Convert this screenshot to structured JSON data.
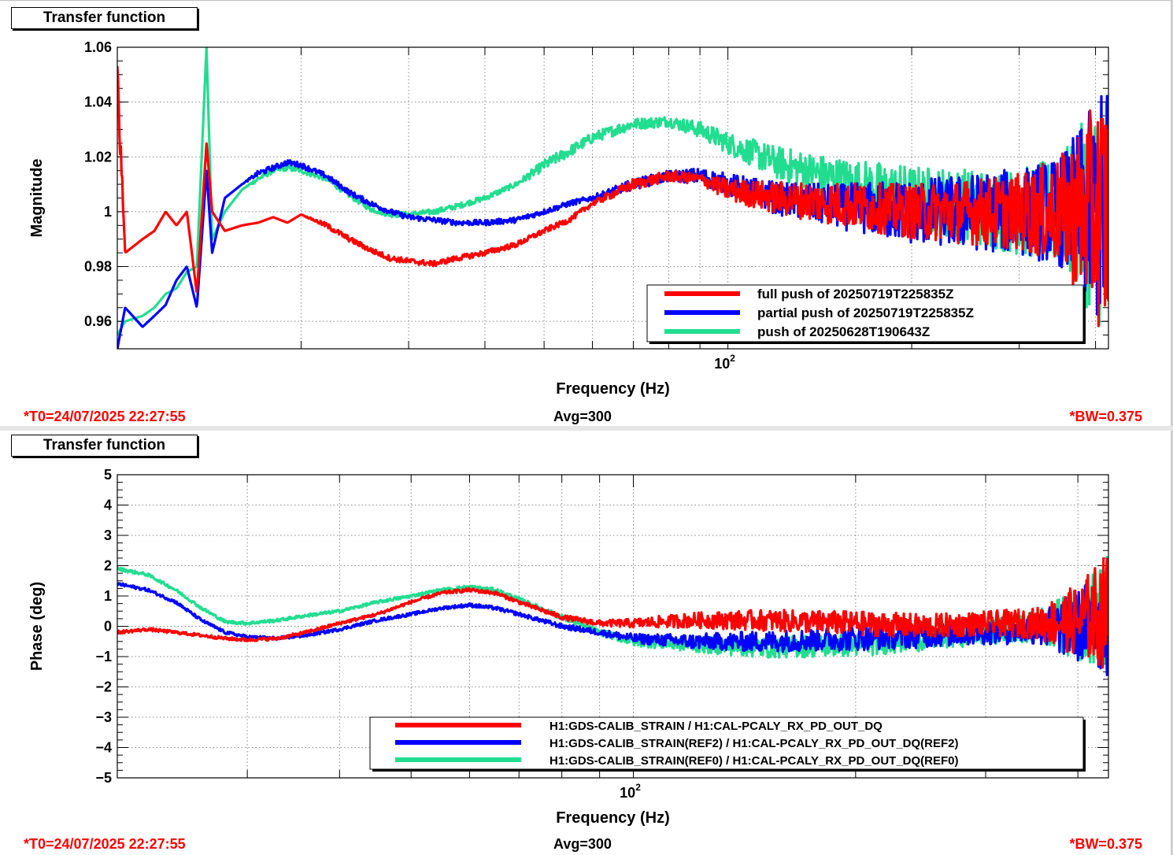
{
  "colors": {
    "full": "#ff0000",
    "partial": "#0000ff",
    "push": "#22dd90",
    "frame": "#000000",
    "grid": "#888888"
  },
  "panels": [
    {
      "pad_title": "Transfer function",
      "footer_left": "*T0=24/07/2025 22:27:55",
      "footer_center": "Avg=300",
      "footer_right": "*BW=0.375"
    },
    {
      "pad_title": "Transfer function",
      "footer_left": "*T0=24/07/2025 22:27:55",
      "footer_center": "Avg=300",
      "footer_right": "*BW=0.375"
    }
  ],
  "chart_data": [
    {
      "type": "line",
      "xlabel": "Frequency (Hz)",
      "ylabel": "Magnitude",
      "xscale": "log",
      "xlim": [
        10,
        420
      ],
      "ylim": [
        0.95,
        1.06
      ],
      "yticks": [
        "1.06",
        "1.04",
        "1.02",
        "1",
        "0.98",
        "0.96"
      ],
      "ytick_values": [
        1.06,
        1.04,
        1.02,
        1.0,
        0.98,
        0.96
      ],
      "xtick_label": {
        "base": "10",
        "exp": "2",
        "value": 100
      },
      "grid": true,
      "legend_position": "bottom-right",
      "series": [
        {
          "name": "full push of 20250719T225835Z",
          "color": "#ff0000",
          "x": [
            10,
            10.3,
            11,
            11.5,
            12,
            12.5,
            13,
            13.5,
            14,
            14.3,
            15,
            16,
            17,
            18,
            19,
            20,
            22,
            24,
            26,
            28,
            30,
            33,
            36,
            40,
            45,
            50,
            55,
            60,
            70,
            80,
            90,
            100,
            120,
            150,
            200,
            250,
            300,
            350,
            400,
            420
          ],
          "y": [
            1.05,
            0.985,
            0.99,
            0.993,
            1.0,
            0.995,
            1.0,
            0.97,
            1.025,
            1.0,
            0.993,
            0.995,
            0.996,
            0.998,
            0.996,
            0.999,
            0.995,
            0.99,
            0.986,
            0.983,
            0.982,
            0.981,
            0.983,
            0.985,
            0.988,
            0.993,
            0.997,
            1.003,
            1.01,
            1.013,
            1.012,
            1.008,
            1.005,
            1.003,
            1.0,
            1.0,
            1.0,
            1.0,
            1.0,
            1.0
          ],
          "noise": [
            0.012,
            0.0,
            0.0,
            0.0,
            0.0,
            0.0,
            0.0,
            0.0,
            0.0,
            0.0,
            0.0,
            0.0,
            0.0,
            0.0,
            0.0,
            0.0,
            0.001,
            0.001,
            0.001,
            0.001,
            0.001,
            0.001,
            0.001,
            0.001,
            0.001,
            0.001,
            0.001,
            0.001,
            0.002,
            0.002,
            0.002,
            0.004,
            0.006,
            0.008,
            0.01,
            0.012,
            0.014,
            0.02,
            0.04,
            0.05
          ]
        },
        {
          "name": "partial push of 20250719T225835Z",
          "color": "#0000ff",
          "x": [
            10,
            10.3,
            11,
            11.5,
            12,
            12.5,
            13,
            13.5,
            14,
            14.3,
            15,
            16,
            17,
            18,
            19,
            20,
            22,
            24,
            26,
            28,
            30,
            33,
            36,
            40,
            45,
            50,
            55,
            60,
            70,
            80,
            90,
            100,
            120,
            150,
            200,
            250,
            300,
            350,
            400,
            420
          ],
          "y": [
            0.95,
            0.965,
            0.958,
            0.962,
            0.966,
            0.975,
            0.98,
            0.965,
            1.015,
            0.985,
            1.005,
            1.01,
            1.014,
            1.016,
            1.018,
            1.017,
            1.013,
            1.007,
            1.003,
            1.0,
            0.998,
            0.997,
            0.996,
            0.996,
            0.997,
            1.0,
            1.003,
            1.005,
            1.01,
            1.013,
            1.013,
            1.01,
            1.005,
            1.002,
            1.0,
            1.0,
            1.0,
            1.0,
            1.0,
            1.0
          ],
          "noise": [
            0.0,
            0.0,
            0.0,
            0.0,
            0.0,
            0.0,
            0.0,
            0.0,
            0.0,
            0.0,
            0.0,
            0.0,
            0.001,
            0.001,
            0.001,
            0.001,
            0.001,
            0.001,
            0.001,
            0.001,
            0.001,
            0.001,
            0.001,
            0.001,
            0.001,
            0.001,
            0.001,
            0.001,
            0.002,
            0.002,
            0.003,
            0.004,
            0.006,
            0.008,
            0.012,
            0.014,
            0.016,
            0.02,
            0.04,
            0.05
          ]
        },
        {
          "name": "push of 20250628T190643Z",
          "color": "#22dd90",
          "x": [
            10,
            10.3,
            11,
            11.5,
            12,
            12.5,
            13,
            13.5,
            14,
            14.3,
            15,
            16,
            17,
            18,
            19,
            20,
            22,
            24,
            26,
            28,
            30,
            33,
            36,
            40,
            45,
            50,
            55,
            60,
            70,
            80,
            90,
            100,
            120,
            150,
            200,
            250,
            300,
            350,
            400,
            420
          ],
          "y": [
            0.955,
            0.96,
            0.962,
            0.965,
            0.97,
            0.972,
            0.978,
            0.98,
            1.06,
            0.99,
            1.0,
            1.008,
            1.012,
            1.015,
            1.016,
            1.015,
            1.012,
            1.006,
            1.001,
            0.999,
            0.999,
            1.0,
            1.002,
            1.005,
            1.01,
            1.017,
            1.022,
            1.027,
            1.032,
            1.033,
            1.03,
            1.025,
            1.018,
            1.012,
            1.005,
            1.002,
            1.0,
            1.0,
            1.0,
            1.0
          ],
          "noise": [
            0.0,
            0.0,
            0.0,
            0.0,
            0.0,
            0.0,
            0.0,
            0.0,
            0.0,
            0.0,
            0.0,
            0.0,
            0.001,
            0.001,
            0.001,
            0.001,
            0.001,
            0.001,
            0.001,
            0.001,
            0.001,
            0.001,
            0.001,
            0.001,
            0.001,
            0.002,
            0.002,
            0.002,
            0.002,
            0.002,
            0.003,
            0.004,
            0.006,
            0.008,
            0.012,
            0.014,
            0.016,
            0.02,
            0.04,
            0.05
          ]
        }
      ]
    },
    {
      "type": "line",
      "xlabel": "Frequency (Hz)",
      "ylabel": "Phase (deg)",
      "xscale": "log",
      "xlim": [
        20,
        440
      ],
      "ylim": [
        -5,
        5
      ],
      "yticks": [
        "5",
        "4",
        "3",
        "2",
        "1",
        "0",
        "−1",
        "−2",
        "−3",
        "−4",
        "−5"
      ],
      "ytick_values": [
        5,
        4,
        3,
        2,
        1,
        0,
        -1,
        -2,
        -3,
        -4,
        -5
      ],
      "xtick_label": {
        "base": "10",
        "exp": "2",
        "value": 100
      },
      "grid": true,
      "legend_position": "bottom-right",
      "series": [
        {
          "name": "H1:GDS-CALIB_STRAIN / H1:CAL-PCALY_RX_PD_OUT_DQ",
          "color": "#ff0000",
          "x": [
            20,
            22,
            24,
            26,
            28,
            30,
            33,
            36,
            40,
            45,
            50,
            55,
            60,
            65,
            70,
            80,
            90,
            100,
            120,
            150,
            200,
            250,
            300,
            350,
            400,
            440
          ],
          "y": [
            -0.2,
            -0.1,
            -0.2,
            -0.3,
            -0.4,
            -0.45,
            -0.4,
            -0.2,
            0.1,
            0.4,
            0.8,
            1.1,
            1.2,
            1.1,
            0.8,
            0.3,
            0.1,
            0.1,
            0.2,
            0.2,
            0.1,
            0.0,
            0.1,
            0.1,
            0.2,
            0.5
          ],
          "noise": [
            0.05,
            0.05,
            0.05,
            0.05,
            0.05,
            0.05,
            0.05,
            0.05,
            0.05,
            0.05,
            0.05,
            0.05,
            0.06,
            0.06,
            0.06,
            0.08,
            0.1,
            0.15,
            0.25,
            0.35,
            0.4,
            0.4,
            0.4,
            0.5,
            1.2,
            2.0
          ]
        },
        {
          "name": "H1:GDS-CALIB_STRAIN(REF2) / H1:CAL-PCALY_RX_PD_OUT_DQ(REF2)",
          "color": "#0000ff",
          "x": [
            20,
            22,
            24,
            26,
            28,
            30,
            33,
            36,
            40,
            45,
            50,
            55,
            60,
            65,
            70,
            80,
            90,
            100,
            120,
            150,
            200,
            250,
            300,
            350,
            400,
            440
          ],
          "y": [
            1.4,
            1.2,
            0.8,
            0.2,
            -0.2,
            -0.35,
            -0.4,
            -0.3,
            -0.1,
            0.2,
            0.4,
            0.6,
            0.7,
            0.6,
            0.4,
            0.0,
            -0.2,
            -0.4,
            -0.5,
            -0.5,
            -0.4,
            -0.3,
            -0.2,
            -0.1,
            0.0,
            0.3
          ],
          "noise": [
            0.05,
            0.05,
            0.05,
            0.05,
            0.05,
            0.05,
            0.05,
            0.05,
            0.05,
            0.05,
            0.05,
            0.05,
            0.06,
            0.06,
            0.06,
            0.08,
            0.1,
            0.15,
            0.25,
            0.35,
            0.4,
            0.4,
            0.4,
            0.5,
            1.2,
            2.0
          ]
        },
        {
          "name": "H1:GDS-CALIB_STRAIN(REF0) / H1:CAL-PCALY_RX_PD_OUT_DQ(REF0)",
          "color": "#22dd90",
          "x": [
            20,
            22,
            24,
            26,
            28,
            30,
            33,
            36,
            40,
            45,
            50,
            55,
            60,
            65,
            70,
            80,
            90,
            100,
            120,
            150,
            200,
            250,
            300,
            350,
            400,
            440
          ],
          "y": [
            1.9,
            1.7,
            1.2,
            0.6,
            0.15,
            0.1,
            0.2,
            0.35,
            0.5,
            0.8,
            1.0,
            1.2,
            1.3,
            1.2,
            0.9,
            0.3,
            -0.2,
            -0.5,
            -0.6,
            -0.7,
            -0.6,
            -0.4,
            -0.2,
            0.0,
            0.1,
            0.4
          ],
          "noise": [
            0.05,
            0.05,
            0.05,
            0.05,
            0.05,
            0.05,
            0.05,
            0.05,
            0.05,
            0.05,
            0.05,
            0.05,
            0.06,
            0.06,
            0.06,
            0.08,
            0.1,
            0.15,
            0.25,
            0.35,
            0.4,
            0.4,
            0.4,
            0.5,
            1.2,
            2.0
          ]
        }
      ]
    }
  ]
}
